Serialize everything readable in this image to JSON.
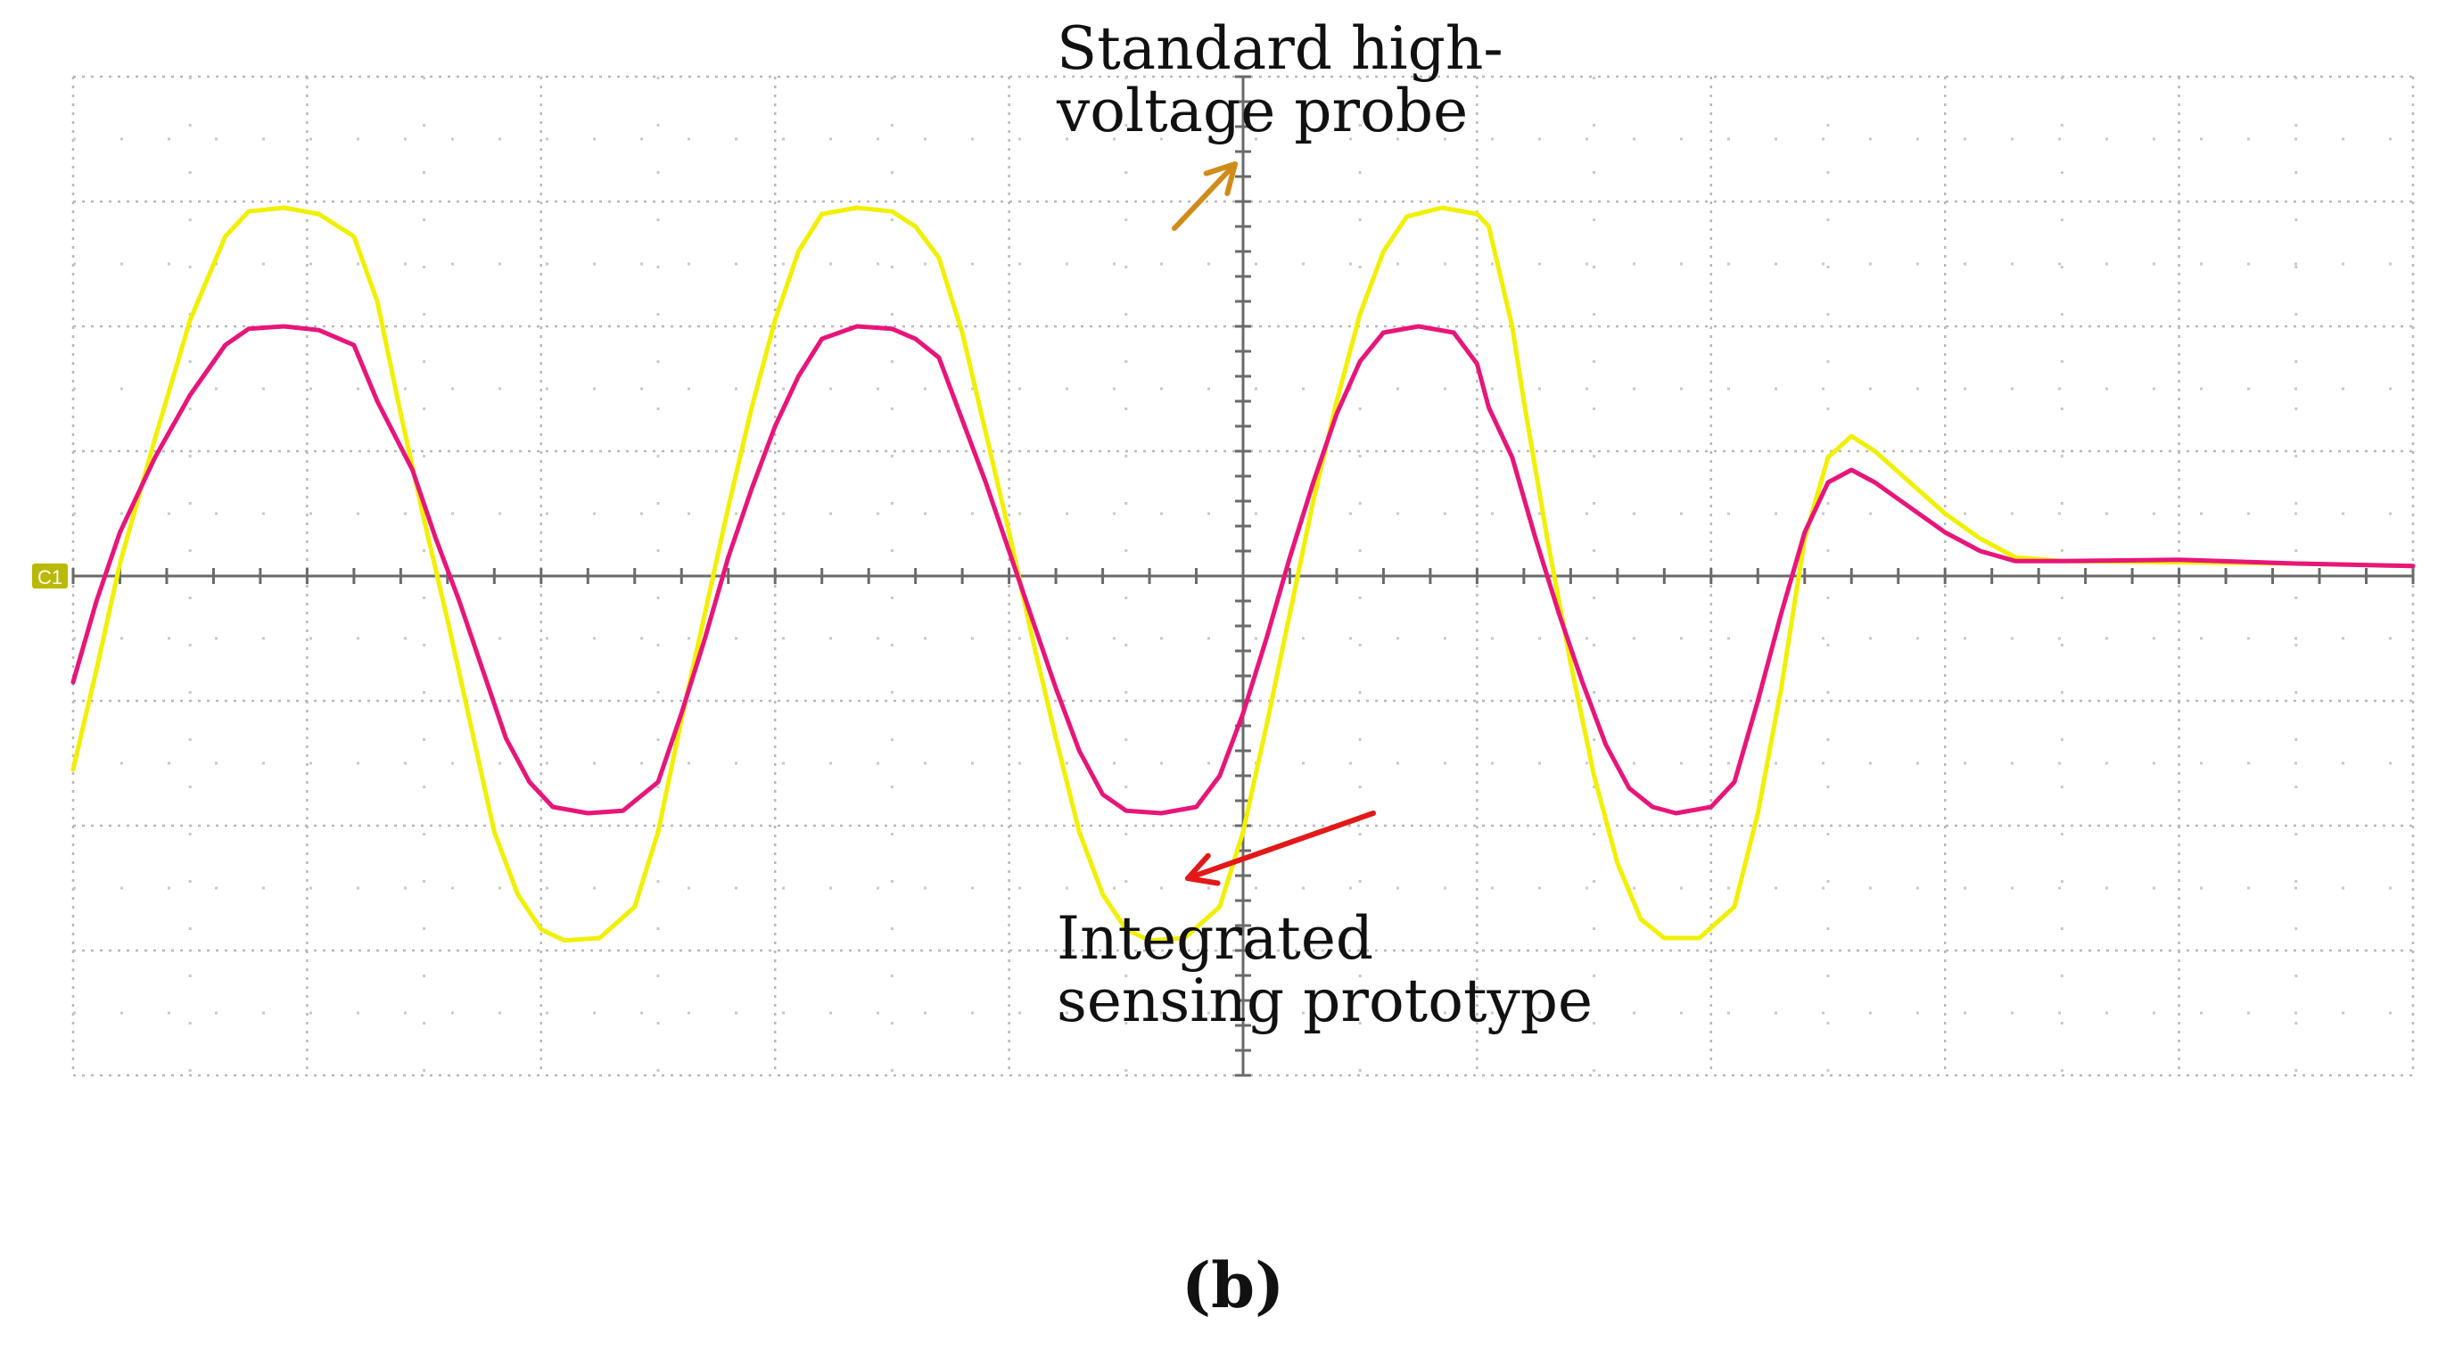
{
  "chart_data": {
    "type": "line",
    "title": "",
    "xlabel": "",
    "ylabel": "",
    "grid": true,
    "channel_marker": "C1",
    "xlim": [
      0,
      10
    ],
    "ylim": [
      -4,
      4
    ],
    "x_divisions": 10,
    "y_divisions": 8,
    "annotations": [
      {
        "text": "Standard high-\nvoltage probe",
        "points_to": "Standard high-voltage probe"
      },
      {
        "text": "Integrated\nsensing prototype",
        "points_to": "Integrated sensing prototype"
      }
    ],
    "panel_label": "(b)",
    "series": [
      {
        "key": "standard",
        "color": "#f0f000",
        "points": [
          [
            0.0,
            -1.55
          ],
          [
            0.1,
            -0.75
          ],
          [
            0.2,
            0.1
          ],
          [
            0.35,
            1.1
          ],
          [
            0.5,
            2.05
          ],
          [
            0.65,
            2.72
          ],
          [
            0.75,
            2.92
          ],
          [
            0.9,
            2.95
          ],
          [
            1.05,
            2.9
          ],
          [
            1.2,
            2.72
          ],
          [
            1.3,
            2.2
          ],
          [
            1.4,
            1.3
          ],
          [
            1.5,
            0.45
          ],
          [
            1.6,
            -0.35
          ],
          [
            1.7,
            -1.2
          ],
          [
            1.8,
            -2.05
          ],
          [
            1.9,
            -2.55
          ],
          [
            2.0,
            -2.83
          ],
          [
            2.1,
            -2.92
          ],
          [
            2.25,
            -2.9
          ],
          [
            2.4,
            -2.65
          ],
          [
            2.5,
            -2.05
          ],
          [
            2.6,
            -1.15
          ],
          [
            2.7,
            -0.3
          ],
          [
            2.8,
            0.55
          ],
          [
            2.9,
            1.35
          ],
          [
            3.0,
            2.05
          ],
          [
            3.1,
            2.6
          ],
          [
            3.2,
            2.9
          ],
          [
            3.35,
            2.95
          ],
          [
            3.5,
            2.92
          ],
          [
            3.6,
            2.8
          ],
          [
            3.7,
            2.55
          ],
          [
            3.8,
            1.95
          ],
          [
            3.9,
            1.15
          ],
          [
            4.0,
            0.35
          ],
          [
            4.1,
            -0.5
          ],
          [
            4.2,
            -1.3
          ],
          [
            4.3,
            -2.05
          ],
          [
            4.4,
            -2.55
          ],
          [
            4.5,
            -2.83
          ],
          [
            4.6,
            -2.92
          ],
          [
            4.75,
            -2.9
          ],
          [
            4.9,
            -2.65
          ],
          [
            5.0,
            -2.05
          ],
          [
            5.1,
            -1.2
          ],
          [
            5.2,
            -0.3
          ],
          [
            5.3,
            0.6
          ],
          [
            5.4,
            1.4
          ],
          [
            5.5,
            2.1
          ],
          [
            5.6,
            2.6
          ],
          [
            5.7,
            2.88
          ],
          [
            5.85,
            2.95
          ],
          [
            6.0,
            2.9
          ],
          [
            6.05,
            2.8
          ],
          [
            6.15,
            2.0
          ],
          [
            6.2,
            1.4
          ],
          [
            6.3,
            0.3
          ],
          [
            6.4,
            -0.7
          ],
          [
            6.5,
            -1.6
          ],
          [
            6.6,
            -2.3
          ],
          [
            6.7,
            -2.75
          ],
          [
            6.8,
            -2.9
          ],
          [
            6.95,
            -2.9
          ],
          [
            7.1,
            -2.65
          ],
          [
            7.2,
            -1.9
          ],
          [
            7.3,
            -0.9
          ],
          [
            7.4,
            0.3
          ],
          [
            7.5,
            0.95
          ],
          [
            7.6,
            1.12
          ],
          [
            7.7,
            1.0
          ],
          [
            7.85,
            0.75
          ],
          [
            8.0,
            0.5
          ],
          [
            8.15,
            0.3
          ],
          [
            8.3,
            0.15
          ],
          [
            8.5,
            0.12
          ],
          [
            9.0,
            0.11
          ],
          [
            9.5,
            0.1
          ],
          [
            10.0,
            0.08
          ]
        ]
      },
      {
        "key": "integrated",
        "color": "#e8157a",
        "points": [
          [
            0.0,
            -0.85
          ],
          [
            0.1,
            -0.2
          ],
          [
            0.2,
            0.35
          ],
          [
            0.35,
            0.95
          ],
          [
            0.5,
            1.45
          ],
          [
            0.65,
            1.85
          ],
          [
            0.75,
            1.98
          ],
          [
            0.9,
            2.0
          ],
          [
            1.05,
            1.97
          ],
          [
            1.2,
            1.85
          ],
          [
            1.3,
            1.4
          ],
          [
            1.45,
            0.85
          ],
          [
            1.55,
            0.3
          ],
          [
            1.65,
            -0.2
          ],
          [
            1.75,
            -0.75
          ],
          [
            1.85,
            -1.3
          ],
          [
            1.95,
            -1.65
          ],
          [
            2.05,
            -1.85
          ],
          [
            2.2,
            -1.9
          ],
          [
            2.35,
            -1.88
          ],
          [
            2.5,
            -1.65
          ],
          [
            2.6,
            -1.1
          ],
          [
            2.7,
            -0.5
          ],
          [
            2.8,
            0.15
          ],
          [
            2.9,
            0.7
          ],
          [
            3.0,
            1.2
          ],
          [
            3.1,
            1.6
          ],
          [
            3.2,
            1.9
          ],
          [
            3.35,
            2.0
          ],
          [
            3.5,
            1.98
          ],
          [
            3.6,
            1.9
          ],
          [
            3.7,
            1.75
          ],
          [
            3.8,
            1.25
          ],
          [
            3.9,
            0.75
          ],
          [
            4.0,
            0.2
          ],
          [
            4.1,
            -0.35
          ],
          [
            4.2,
            -0.9
          ],
          [
            4.3,
            -1.4
          ],
          [
            4.4,
            -1.75
          ],
          [
            4.5,
            -1.88
          ],
          [
            4.65,
            -1.9
          ],
          [
            4.8,
            -1.85
          ],
          [
            4.9,
            -1.6
          ],
          [
            5.0,
            -1.1
          ],
          [
            5.1,
            -0.5
          ],
          [
            5.2,
            0.15
          ],
          [
            5.3,
            0.75
          ],
          [
            5.4,
            1.3
          ],
          [
            5.5,
            1.72
          ],
          [
            5.6,
            1.95
          ],
          [
            5.75,
            2.0
          ],
          [
            5.9,
            1.95
          ],
          [
            6.0,
            1.7
          ],
          [
            6.05,
            1.35
          ],
          [
            6.15,
            0.95
          ],
          [
            6.25,
            0.3
          ],
          [
            6.35,
            -0.3
          ],
          [
            6.45,
            -0.85
          ],
          [
            6.55,
            -1.35
          ],
          [
            6.65,
            -1.7
          ],
          [
            6.75,
            -1.85
          ],
          [
            6.85,
            -1.9
          ],
          [
            7.0,
            -1.85
          ],
          [
            7.1,
            -1.65
          ],
          [
            7.2,
            -1.0
          ],
          [
            7.3,
            -0.3
          ],
          [
            7.4,
            0.35
          ],
          [
            7.5,
            0.75
          ],
          [
            7.6,
            0.85
          ],
          [
            7.7,
            0.75
          ],
          [
            7.85,
            0.55
          ],
          [
            8.0,
            0.35
          ],
          [
            8.15,
            0.2
          ],
          [
            8.3,
            0.12
          ],
          [
            8.5,
            0.12
          ],
          [
            9.0,
            0.13
          ],
          [
            9.5,
            0.1
          ],
          [
            10.0,
            0.08
          ]
        ]
      }
    ]
  }
}
